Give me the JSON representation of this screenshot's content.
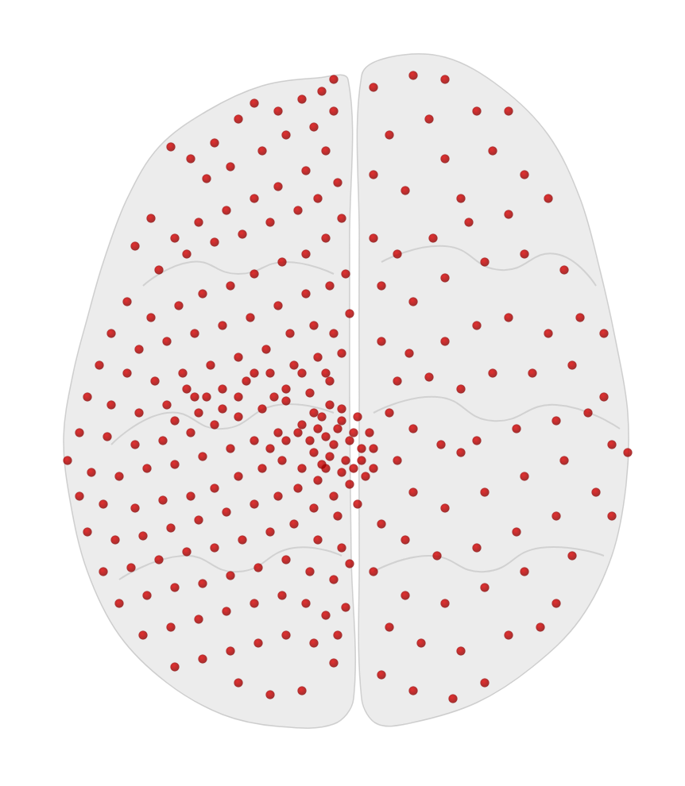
{
  "chart_data": {
    "type": "scatter",
    "x": [
      420,
      405,
      380,
      350,
      320,
      300,
      270,
      240,
      215,
      260,
      290,
      330,
      360,
      395,
      420,
      410,
      385,
      350,
      320,
      285,
      250,
      220,
      190,
      170,
      200,
      235,
      270,
      305,
      340,
      375,
      400,
      425,
      430,
      410,
      385,
      355,
      320,
      290,
      255,
      225,
      190,
      160,
      140,
      175,
      210,
      245,
      280,
      315,
      350,
      385,
      415,
      435,
      440,
      420,
      395,
      365,
      335,
      300,
      265,
      230,
      195,
      160,
      125,
      110,
      140,
      175,
      210,
      245,
      280,
      310,
      340,
      370,
      400,
      430,
      415,
      390,
      360,
      330,
      300,
      270,
      240,
      205,
      170,
      135,
      100,
      85,
      115,
      150,
      185,
      220,
      255,
      290,
      320,
      350,
      380,
      405,
      430,
      445,
      420,
      395,
      410,
      435,
      455,
      460,
      440,
      420,
      400,
      380,
      355,
      330,
      300,
      270,
      240,
      205,
      170,
      130,
      100,
      110,
      145,
      180,
      215,
      250,
      285,
      320,
      350,
      375,
      395,
      425,
      450,
      470,
      130,
      165,
      200,
      235,
      270,
      305,
      340,
      370,
      400,
      430,
      150,
      185,
      220,
      255,
      290,
      325,
      360,
      390,
      420,
      440,
      180,
      215,
      250,
      285,
      320,
      355,
      385,
      410,
      435,
      425,
      220,
      255,
      290,
      325,
      360,
      395,
      420,
      300,
      340,
      380,
      470,
      520,
      560,
      600,
      540,
      490,
      470,
      510,
      560,
      620,
      660,
      690,
      640,
      590,
      545,
      500,
      470,
      480,
      520,
      560,
      610,
      660,
      710,
      730,
      690,
      640,
      600,
      560,
      515,
      480,
      500,
      540,
      580,
      620,
      670,
      720,
      760,
      740,
      700,
      650,
      600,
      580,
      555,
      520,
      490,
      500,
      520,
      560,
      610,
      660,
      710,
      770,
      750,
      700,
      650,
      600,
      550,
      510,
      480,
      470,
      510,
      560,
      610,
      660,
      720,
      700,
      640,
      580,
      530,
      490,
      480,
      520,
      570,
      610,
      680,
      770,
      790,
      760,
      580,
      640,
      400,
      410,
      425,
      440,
      415,
      430,
      445,
      405,
      390,
      455,
      380,
      360,
      345,
      320,
      300,
      280,
      260,
      250,
      235,
      220,
      410,
      395,
      375,
      360,
      340,
      415,
      450,
      465,
      470,
      430
    ],
    "values": [
      100,
      115,
      125,
      140,
      130,
      150,
      180,
      200,
      185,
      225,
      210,
      190,
      170,
      160,
      140,
      190,
      215,
      235,
      250,
      265,
      280,
      300,
      275,
      310,
      340,
      320,
      305,
      295,
      280,
      265,
      250,
      230,
      275,
      300,
      320,
      330,
      345,
      360,
      370,
      385,
      400,
      380,
      420,
      440,
      430,
      420,
      410,
      400,
      385,
      370,
      360,
      345,
      395,
      420,
      410,
      420,
      440,
      450,
      460,
      470,
      480,
      470,
      460,
      500,
      510,
      520,
      510,
      500,
      490,
      480,
      470,
      460,
      450,
      445,
      480,
      495,
      505,
      515,
      525,
      535,
      545,
      555,
      560,
      550,
      545,
      580,
      595,
      600,
      590,
      585,
      575,
      565,
      555,
      545,
      535,
      525,
      515,
      545,
      560,
      570,
      590,
      580,
      565,
      600,
      610,
      625,
      605,
      590,
      580,
      590,
      600,
      615,
      625,
      630,
      640,
      635,
      625,
      670,
      680,
      675,
      665,
      655,
      645,
      635,
      625,
      615,
      640,
      650,
      635,
      590,
      720,
      715,
      705,
      695,
      690,
      680,
      670,
      660,
      680,
      690,
      760,
      750,
      740,
      735,
      725,
      715,
      705,
      720,
      730,
      710,
      800,
      790,
      780,
      770,
      760,
      750,
      760,
      775,
      765,
      800,
      840,
      830,
      820,
      810,
      800,
      810,
      835,
      860,
      875,
      870,
      110,
      95,
      100,
      140,
      150,
      170,
      220,
      240,
      200,
      190,
      220,
      250,
      270,
      280,
      300,
      320,
      300,
      360,
      380,
      350,
      330,
      320,
      340,
      400,
      420,
      400,
      410,
      430,
      445,
      430,
      480,
      475,
      490,
      470,
      470,
      460,
      500,
      520,
      530,
      540,
      555,
      570,
      560,
      540,
      520,
      580,
      620,
      640,
      620,
      600,
      580,
      560,
      620,
      650,
      670,
      690,
      700,
      680,
      660,
      720,
      750,
      760,
      740,
      720,
      700,
      760,
      800,
      820,
      810,
      790,
      850,
      870,
      880,
      860,
      790,
      650,
      570,
      420,
      250,
      140,
      540,
      550,
      540,
      555,
      575,
      595,
      590,
      585,
      555,
      580,
      470,
      490,
      500,
      470,
      500,
      515,
      500,
      520,
      490,
      530,
      470,
      520,
      545,
      555,
      565,
      510,
      525,
      545,
      565,
      530
    ],
    "xlim": [
      0,
      862
    ],
    "ylim": [
      0,
      990
    ],
    "color": "#e00000",
    "marker": "circle",
    "tick_labels": false,
    "grid": false
  }
}
